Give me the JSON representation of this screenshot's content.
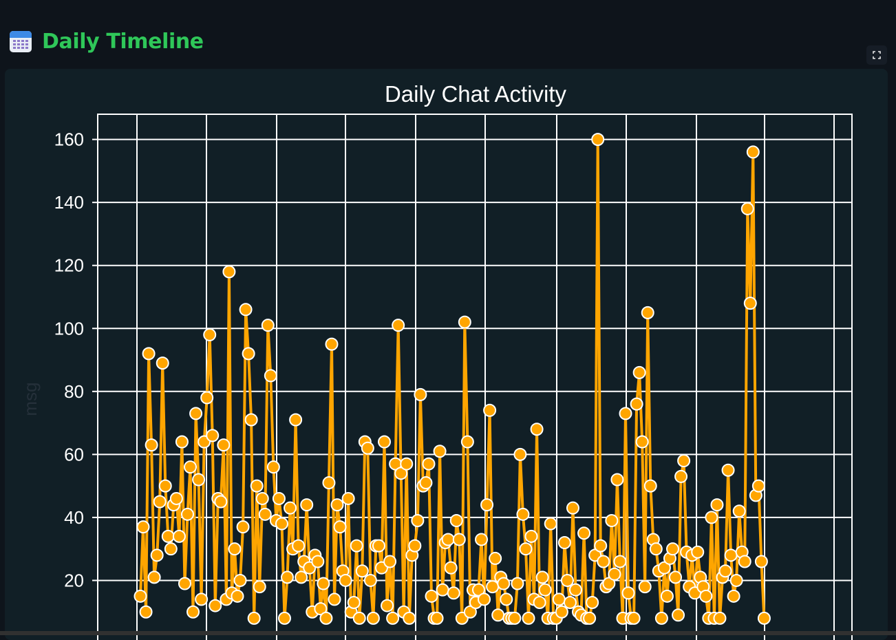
{
  "page": {
    "title": "Daily Timeline",
    "title_icon": "calendar-icon",
    "fullscreen_icon": "fullscreen-icon"
  },
  "colors": {
    "background": "#0e141b",
    "card": "#111f26",
    "title": "#2fc759",
    "line": "#ffa500",
    "grid": "#ffffff",
    "ylabel": "#25303a"
  },
  "chart_data": {
    "type": "line",
    "title": "Daily Chat Activity",
    "xlabel": "",
    "ylabel": "msg",
    "ylim": [
      0,
      168
    ],
    "yticks": [
      20,
      40,
      60,
      80,
      100,
      120,
      140,
      160
    ],
    "ytick_labels": [
      "20",
      "40",
      "60",
      "80",
      "100",
      "120",
      "140",
      "160"
    ],
    "grid": true,
    "marker": "circle",
    "series": [
      {
        "values": [
          15,
          37,
          10,
          92,
          63,
          21,
          28,
          45,
          89,
          50,
          34,
          30,
          44,
          46,
          34,
          64,
          19,
          41,
          56,
          10,
          73,
          52,
          14,
          64,
          78,
          98,
          66,
          12,
          46,
          45,
          63,
          14,
          118,
          16,
          30,
          15,
          20,
          37,
          106,
          92,
          71,
          8,
          50,
          18,
          46,
          41,
          101,
          85,
          56,
          39,
          46,
          38,
          8,
          21,
          43,
          30,
          71,
          31,
          21,
          26,
          44,
          24,
          10,
          28,
          26,
          11,
          19,
          8,
          51,
          95,
          14,
          44,
          37,
          23,
          20,
          46,
          10,
          13,
          31,
          8,
          23,
          64,
          62,
          20,
          8,
          31,
          31,
          24,
          64,
          12,
          26,
          8,
          57,
          101,
          54,
          10,
          57,
          8,
          28,
          31,
          39,
          79,
          50,
          51,
          57,
          15,
          8,
          8,
          61,
          17,
          32,
          33,
          24,
          16,
          39,
          33,
          8,
          102,
          64,
          10,
          17,
          13,
          17,
          33,
          14,
          44,
          74,
          18,
          27,
          9,
          21,
          19,
          14,
          8,
          8,
          8,
          19,
          60,
          41,
          30,
          8,
          34,
          14,
          68,
          13,
          21,
          17,
          8,
          38,
          8,
          8,
          14,
          10,
          32,
          20,
          13,
          43,
          17,
          10,
          9,
          35,
          8,
          8,
          13,
          28,
          160,
          31,
          26,
          18,
          19,
          39,
          22,
          52,
          26,
          8,
          73,
          16,
          8,
          8,
          76,
          86,
          64,
          18,
          105,
          50,
          33,
          30,
          23,
          8,
          24,
          15,
          27,
          30,
          21,
          9,
          53,
          58,
          29,
          18,
          28,
          16,
          29,
          21,
          18,
          15,
          8,
          40,
          8,
          44,
          8,
          21,
          23,
          55,
          28,
          15,
          20,
          42,
          29,
          26,
          138,
          108,
          156,
          47,
          50,
          26,
          8
        ],
        "x_range": [
          0,
          245
        ]
      }
    ]
  }
}
